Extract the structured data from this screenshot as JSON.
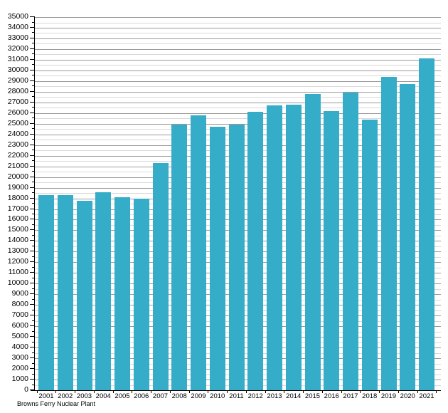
{
  "chart_data": {
    "type": "bar",
    "title": "",
    "x_axis_label": "Browns Ferry Nuclear Plant",
    "legend": "none",
    "grid": "horizontal, major every 1000 with minor every 500",
    "categories": [
      "2001",
      "2002",
      "2003",
      "2004",
      "2005",
      "2006",
      "2007",
      "2008",
      "2009",
      "2010",
      "2011",
      "2012",
      "2013",
      "2014",
      "2015",
      "2016",
      "2017",
      "2018",
      "2019",
      "2020",
      "2021"
    ],
    "values": [
      18300,
      18300,
      17800,
      18600,
      18100,
      18000,
      21300,
      24900,
      25800,
      24700,
      24900,
      26100,
      26700,
      26800,
      27800,
      26200,
      27900,
      25400,
      29400,
      28700,
      31100
    ],
    "ylim": [
      0,
      35000
    ],
    "y_tick_step": 1000,
    "y_minor_step": 500,
    "y_tick_labels": [
      "0",
      "1000",
      "2000",
      "3000",
      "4000",
      "5000",
      "6000",
      "7000",
      "8000",
      "9000",
      "10000",
      "11000",
      "12000",
      "13000",
      "14000",
      "15000",
      "16000",
      "17000",
      "18000",
      "19000",
      "20000",
      "21000",
      "22000",
      "23000",
      "24000",
      "25000",
      "26000",
      "27000",
      "28000",
      "29000",
      "30000",
      "31000",
      "32000",
      "33000",
      "34000",
      "35000"
    ],
    "bar_color": "#35adc8",
    "major_grid_color": "#9a9a9a",
    "minor_grid_color": "#d9d9d9",
    "axis_color": "#000000"
  }
}
